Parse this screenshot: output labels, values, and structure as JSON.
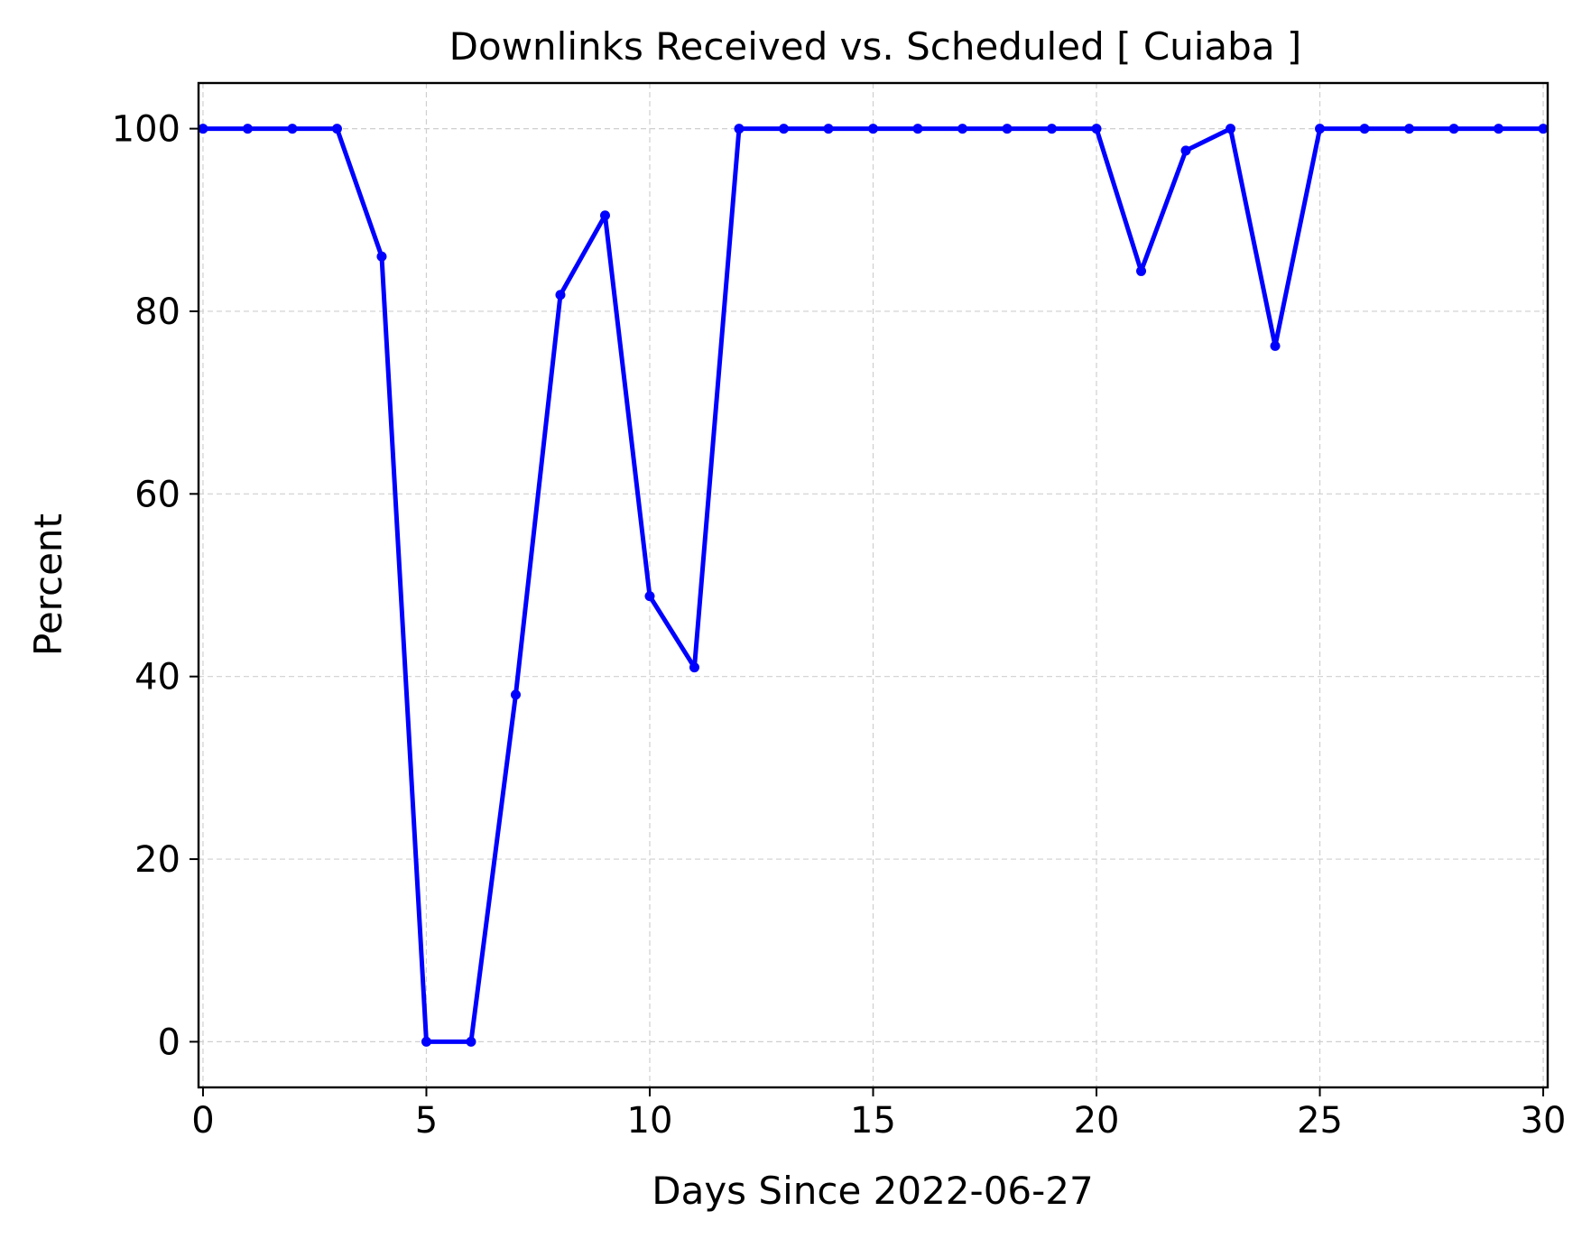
{
  "chart_data": {
    "type": "line",
    "title": "Downlinks Received vs. Scheduled [ Cuiaba ]",
    "xlabel": "Days Since 2022-06-27",
    "ylabel": "Percent",
    "xlim": [
      -0.1,
      30.1
    ],
    "ylim": [
      -5,
      105
    ],
    "xticks": [
      0,
      5,
      10,
      15,
      20,
      25,
      30
    ],
    "yticks": [
      0,
      20,
      40,
      60,
      80,
      100
    ],
    "grid": true,
    "series": [
      {
        "color": "#0000ff",
        "marker": "circle",
        "x": [
          0,
          1,
          2,
          3,
          4,
          5,
          6,
          7,
          8,
          9,
          10,
          11,
          12,
          13,
          14,
          15,
          16,
          17,
          18,
          19,
          20,
          21,
          22,
          23,
          24,
          25,
          26,
          27,
          28,
          29,
          30
        ],
        "y": [
          100,
          100,
          100,
          100,
          86,
          0,
          0,
          38,
          81.8,
          90.5,
          48.8,
          41,
          100,
          100,
          100,
          100,
          100,
          100,
          100,
          100,
          100,
          84.4,
          97.6,
          100,
          76.2,
          100,
          100,
          100,
          100,
          100,
          100
        ]
      }
    ]
  }
}
